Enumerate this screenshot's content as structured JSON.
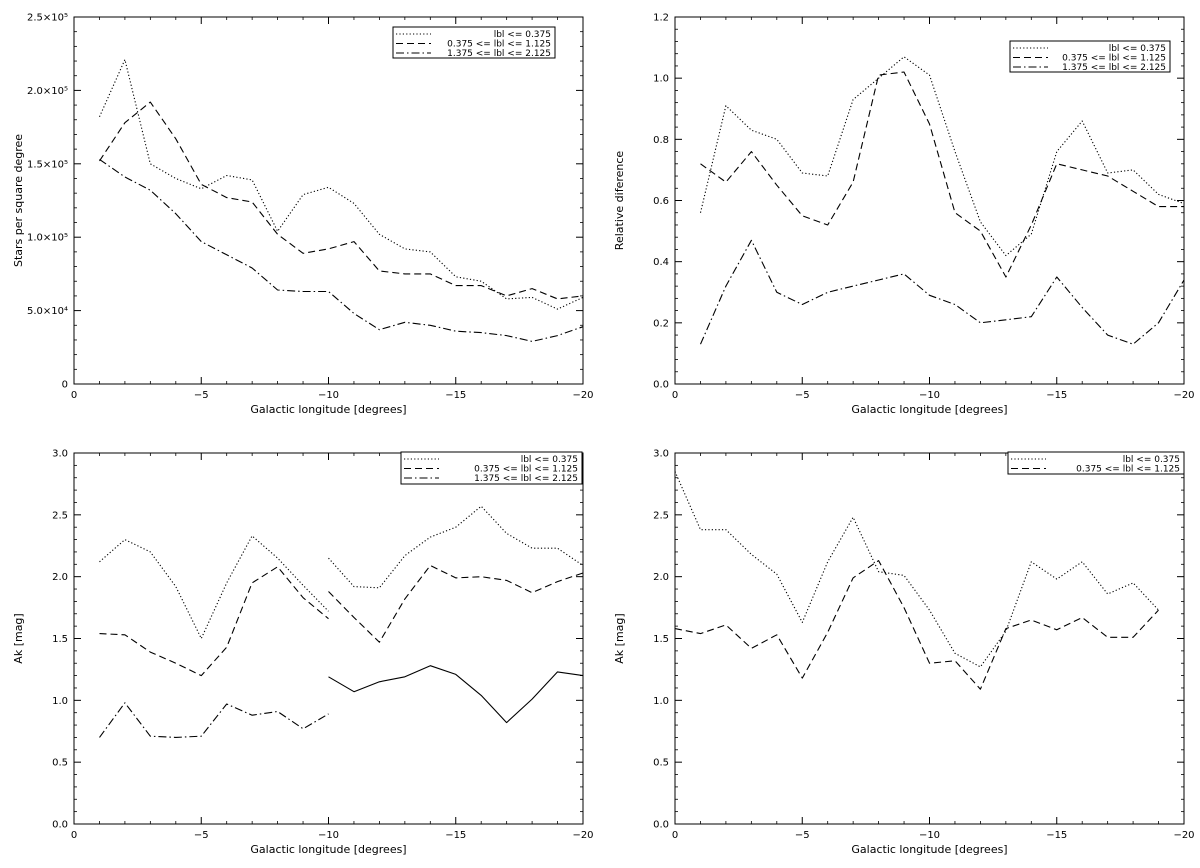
{
  "chart_data": [
    {
      "type": "line",
      "xlabel": "Galactic longitude [degrees]",
      "ylabel": "Stars per square degree",
      "xlim": [
        0,
        -20
      ],
      "ylim": [
        0,
        250000
      ],
      "xticks": [
        0,
        -5,
        -10,
        -15,
        -20
      ],
      "xtick_labels": [
        "0",
        "−5",
        "−10",
        "−15",
        "−20"
      ],
      "yticks": [
        0,
        50000,
        100000,
        150000,
        200000,
        250000
      ],
      "ytick_labels": [
        "0",
        "5.0×10⁴",
        "1.0×10⁵",
        "1.5×10⁵",
        "2.0×10⁵",
        "2.5×10⁵"
      ],
      "legend_position": "top-right",
      "series": [
        {
          "name": "lbl <= 0.375",
          "style": "dotted",
          "segments": [
            {
              "x": [
                -1,
                -2,
                -3,
                -4,
                -5,
                -6,
                -7,
                -8,
                -9,
                -10,
                -11,
                -12,
                -13,
                -14,
                -15,
                -16,
                -17,
                -18,
                -19,
                -20
              ],
              "y": [
                182000,
                221000,
                150000,
                140000,
                133000,
                142000,
                139000,
                104000,
                129000,
                134000,
                123000,
                102000,
                92000,
                90000,
                73000,
                70000,
                58000,
                59000,
                51000,
                59000
              ]
            }
          ]
        },
        {
          "name": "0.375 <= lbl <= 1.125",
          "style": "dashed",
          "segments": [
            {
              "x": [
                -1,
                -2,
                -3,
                -4,
                -5,
                -6,
                -7,
                -8,
                -9,
                -10,
                -11,
                -12,
                -13,
                -14,
                -15,
                -16,
                -17,
                -18,
                -19,
                -20
              ],
              "y": [
                152000,
                178000,
                192000,
                167000,
                136000,
                127000,
                124000,
                102000,
                89000,
                92000,
                97000,
                77000,
                75000,
                75000,
                67000,
                67000,
                60000,
                65000,
                58000,
                60000
              ]
            }
          ]
        },
        {
          "name": "1.375 <= lbl <= 2.125",
          "style": "dashdot",
          "segments": [
            {
              "x": [
                -1,
                -2,
                -3,
                -4,
                -5,
                -6,
                -7,
                -8,
                -9,
                -10,
                -11,
                -12,
                -13,
                -14,
                -15,
                -16,
                -17,
                -18,
                -19,
                -20
              ],
              "y": [
                153000,
                141000,
                132000,
                116000,
                97000,
                88000,
                79000,
                64000,
                63000,
                63000,
                48000,
                37000,
                42000,
                40000,
                36000,
                35000,
                33000,
                29000,
                33000,
                39000
              ]
            }
          ]
        }
      ]
    },
    {
      "type": "line",
      "xlabel": "Galactic longitude [degrees]",
      "ylabel": "Relative diference",
      "xlim": [
        0,
        -20
      ],
      "ylim": [
        0,
        1.2
      ],
      "xticks": [
        0,
        -5,
        -10,
        -15,
        -20
      ],
      "xtick_labels": [
        "0",
        "−5",
        "−10",
        "−15",
        "−20"
      ],
      "yticks": [
        0,
        0.2,
        0.4,
        0.6,
        0.8,
        1.0,
        1.2
      ],
      "ytick_labels": [
        "0.0",
        "0.2",
        "0.4",
        "0.6",
        "0.8",
        "1.0",
        "1.2"
      ],
      "legend_position": "top-right",
      "series": [
        {
          "name": "lbl <= 0.375",
          "style": "dotted",
          "segments": [
            {
              "x": [
                -1,
                -2,
                -3,
                -4,
                -5,
                -6,
                -7,
                -8,
                -9,
                -10,
                -11,
                -12,
                -13,
                -14,
                -15,
                -16,
                -17,
                -18,
                -19,
                -20
              ],
              "y": [
                0.56,
                0.91,
                0.83,
                0.8,
                0.69,
                0.68,
                0.93,
                1.0,
                1.07,
                1.01,
                0.76,
                0.53,
                0.42,
                0.49,
                0.76,
                0.86,
                0.69,
                0.7,
                0.62,
                0.59
              ]
            }
          ]
        },
        {
          "name": "0.375 <= lbl <= 1.125",
          "style": "dashed",
          "segments": [
            {
              "x": [
                -1,
                -2,
                -3,
                -4,
                -5,
                -6,
                -7,
                -8,
                -9,
                -10,
                -11,
                -12,
                -13,
                -14,
                -15,
                -16,
                -17,
                -18,
                -19,
                -20
              ],
              "y": [
                0.72,
                0.66,
                0.76,
                0.65,
                0.55,
                0.52,
                0.66,
                1.01,
                1.02,
                0.85,
                0.56,
                0.5,
                0.35,
                0.52,
                0.72,
                0.7,
                0.68,
                0.63,
                0.58,
                0.58
              ]
            }
          ]
        },
        {
          "name": "1.375 <= lbl <= 2.125",
          "style": "dashdot",
          "segments": [
            {
              "x": [
                -1,
                -2,
                -3,
                -4,
                -5,
                -6,
                -7,
                -8,
                -9,
                -10,
                -11,
                -12,
                -13,
                -14,
                -15,
                -16,
                -17,
                -18,
                -19,
                -20
              ],
              "y": [
                0.13,
                0.32,
                0.47,
                0.3,
                0.26,
                0.3,
                0.32,
                0.34,
                0.36,
                0.29,
                0.26,
                0.2,
                0.21,
                0.22,
                0.35,
                0.25,
                0.16,
                0.13,
                0.2,
                0.34
              ]
            }
          ]
        }
      ]
    },
    {
      "type": "line",
      "xlabel": "Galactic longitude [degrees]",
      "ylabel": "Ak [mag]",
      "xlim": [
        0,
        -20
      ],
      "ylim": [
        0,
        3
      ],
      "xticks": [
        0,
        -5,
        -10,
        -15,
        -20
      ],
      "xtick_labels": [
        "0",
        "−5",
        "−10",
        "−15",
        "−20"
      ],
      "yticks": [
        0,
        0.5,
        1.0,
        1.5,
        2.0,
        2.5,
        3.0
      ],
      "ytick_labels": [
        "0.0",
        "0.5",
        "1.0",
        "1.5",
        "2.0",
        "2.5",
        "3.0"
      ],
      "legend_position": "top-right",
      "series": [
        {
          "name": "lbl <= 0.375",
          "style": "dotted",
          "segments": [
            {
              "x": [
                -1,
                -2,
                -3,
                -4,
                -5,
                -6,
                -7,
                -8,
                -9,
                -10
              ],
              "y": [
                2.12,
                2.3,
                2.2,
                1.92,
                1.5,
                1.95,
                2.33,
                2.15,
                1.93,
                1.72
              ]
            },
            {
              "x": [
                -10,
                -11,
                -12,
                -13,
                -14,
                -15,
                -16,
                -17,
                -18,
                -19,
                -20
              ],
              "y": [
                2.15,
                1.92,
                1.91,
                2.17,
                2.32,
                2.4,
                2.57,
                2.35,
                2.23,
                2.23,
                2.09
              ]
            }
          ]
        },
        {
          "name": "0.375 <= lbl <= 1.125",
          "style": "dashed",
          "segments": [
            {
              "x": [
                -1,
                -2,
                -3,
                -4,
                -5,
                -6,
                -7,
                -8,
                -9,
                -10
              ],
              "y": [
                1.54,
                1.53,
                1.39,
                1.3,
                1.2,
                1.43,
                1.95,
                2.08,
                1.83,
                1.66
              ]
            },
            {
              "x": [
                -10,
                -11,
                -12,
                -13,
                -14,
                -15,
                -16,
                -17,
                -18,
                -19,
                -20
              ],
              "y": [
                1.88,
                1.67,
                1.47,
                1.82,
                2.09,
                1.99,
                2.0,
                1.97,
                1.87,
                1.96,
                2.03
              ]
            }
          ]
        },
        {
          "name": "1.375 <= lbl <= 2.125",
          "style": "dashdot",
          "segments": [
            {
              "x": [
                -1,
                -2,
                -3,
                -4,
                -5,
                -6,
                -7,
                -8,
                -9,
                -10
              ],
              "y": [
                0.7,
                0.98,
                0.71,
                0.7,
                0.71,
                0.97,
                0.88,
                0.91,
                0.77,
                0.89
              ]
            }
          ]
        },
        {
          "style": "solid",
          "segments": [
            {
              "x": [
                -10,
                -11,
                -12,
                -13,
                -14,
                -15,
                -16,
                -17,
                -18,
                -19,
                -20
              ],
              "y": [
                1.19,
                1.07,
                1.15,
                1.19,
                1.28,
                1.21,
                1.04,
                0.82,
                1.01,
                1.23,
                1.2
              ]
            }
          ]
        }
      ]
    },
    {
      "type": "line",
      "xlabel": "Galactic longitude [degrees]",
      "ylabel": "Ak [mag]",
      "xlim": [
        0,
        -20
      ],
      "ylim": [
        0,
        3
      ],
      "xticks": [
        0,
        -5,
        -10,
        -15,
        -20
      ],
      "xtick_labels": [
        "0",
        "−5",
        "−10",
        "−15",
        "−20"
      ],
      "yticks": [
        0,
        0.5,
        1.0,
        1.5,
        2.0,
        2.5,
        3.0
      ],
      "ytick_labels": [
        "0.0",
        "0.5",
        "1.0",
        "1.5",
        "2.0",
        "2.5",
        "3.0"
      ],
      "legend_position": "top-right",
      "series": [
        {
          "name": "lbl <= 0.375",
          "style": "dotted",
          "segments": [
            {
              "x": [
                0,
                -1,
                -2,
                -3,
                -4,
                -5,
                -6,
                -7,
                -8,
                -9,
                -10,
                -11,
                -12,
                -13,
                -14,
                -15,
                -16,
                -17,
                -18,
                -19
              ],
              "y": [
                2.85,
                2.38,
                2.38,
                2.18,
                2.02,
                1.63,
                2.12,
                2.48,
                2.04,
                2.01,
                1.73,
                1.38,
                1.27,
                1.56,
                2.12,
                1.98,
                2.12,
                1.86,
                1.95,
                1.73
              ]
            }
          ]
        },
        {
          "name": "0.375 <= lbl <= 1.125",
          "style": "dashed",
          "segments": [
            {
              "x": [
                0,
                -1,
                -2,
                -3,
                -4,
                -5,
                -6,
                -7,
                -8,
                -9,
                -10,
                -11,
                -12,
                -13,
                -14,
                -15,
                -16,
                -17,
                -18,
                -19
              ],
              "y": [
                1.58,
                1.54,
                1.61,
                1.42,
                1.53,
                1.18,
                1.55,
                1.99,
                2.13,
                1.75,
                1.3,
                1.32,
                1.09,
                1.58,
                1.65,
                1.57,
                1.67,
                1.51,
                1.51,
                1.73
              ]
            }
          ]
        }
      ]
    }
  ]
}
